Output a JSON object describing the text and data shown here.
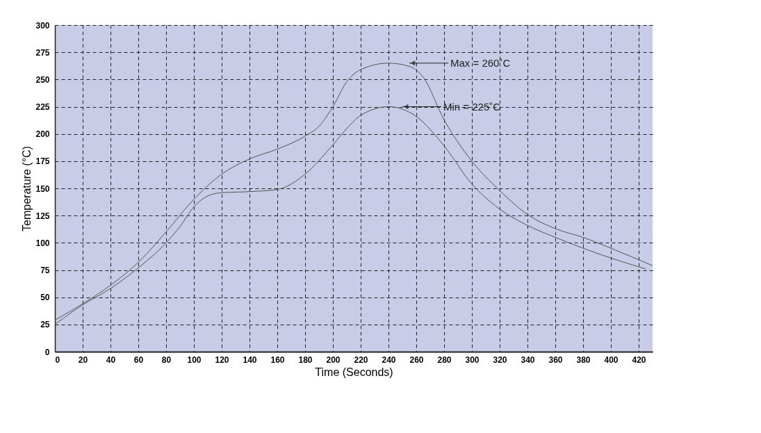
{
  "chart_data": {
    "type": "line",
    "xlabel": "Time (Seconds)",
    "ylabel": "Temperature (°C)",
    "xlim": [
      0,
      430
    ],
    "xticks": [
      0,
      20,
      40,
      60,
      80,
      100,
      120,
      140,
      160,
      180,
      200,
      220,
      240,
      260,
      280,
      300,
      320,
      340,
      360,
      380,
      400,
      420
    ],
    "ylim": [
      0,
      300
    ],
    "yticks": [
      0,
      25,
      50,
      75,
      100,
      125,
      150,
      175,
      200,
      225,
      250,
      275,
      300
    ],
    "grid": true,
    "line_style": "solid",
    "marker": "none",
    "series": [
      {
        "color": "#555555",
        "x": [
          0,
          20,
          40,
          60,
          80,
          100,
          120,
          140,
          160,
          180,
          190,
          200,
          210,
          220,
          240,
          255,
          265,
          280,
          300,
          320,
          340,
          360,
          380,
          400,
          430
        ],
        "values": [
          29,
          44,
          61,
          82,
          110,
          140,
          163,
          177,
          186,
          198,
          207,
          225,
          248,
          259,
          265,
          262,
          252,
          213,
          175,
          148,
          126,
          113,
          105,
          95,
          79
        ]
      },
      {
        "color": "#555555",
        "x": [
          0,
          20,
          40,
          60,
          80,
          90,
          100,
          110,
          120,
          140,
          160,
          180,
          200,
          210,
          220,
          240,
          260,
          280,
          300,
          320,
          340,
          360,
          380,
          400,
          425
        ],
        "values": [
          25,
          43,
          58,
          77,
          100,
          115,
          133,
          143,
          146,
          147,
          149,
          163,
          190,
          205,
          217,
          225,
          216,
          189,
          154,
          131,
          116,
          105,
          95,
          86,
          76
        ]
      }
    ],
    "annotations": [
      {
        "text": "Max = 260˚C",
        "x": 255,
        "y": 265
      },
      {
        "text": "Min = 225˚C",
        "x": 250,
        "y": 225
      }
    ]
  }
}
